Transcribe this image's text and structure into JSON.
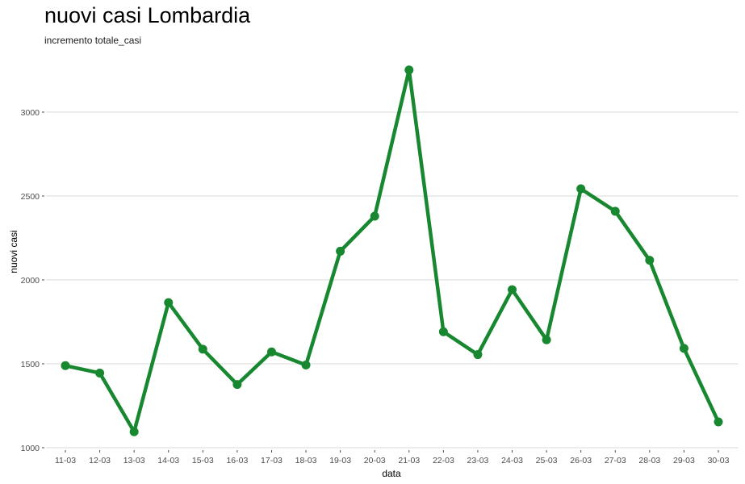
{
  "chart_data": {
    "type": "line",
    "title": "nuovi casi Lombardia",
    "subtitle": "incremento totale_casi",
    "xlabel": "data",
    "ylabel": "nuovi casi",
    "categories": [
      "11-03",
      "12-03",
      "13-03",
      "14-03",
      "15-03",
      "16-03",
      "17-03",
      "18-03",
      "19-03",
      "20-03",
      "21-03",
      "22-03",
      "23-03",
      "24-03",
      "25-03",
      "26-03",
      "27-03",
      "28-03",
      "29-03",
      "30-03"
    ],
    "series": [
      {
        "values": [
          1489,
          1445,
          1095,
          1865,
          1587,
          1377,
          1571,
          1493,
          2171,
          2380,
          3251,
          1691,
          1555,
          1942,
          1643,
          2543,
          2409,
          2117,
          1592,
          1154
        ]
      }
    ],
    "yticks": [
      1000,
      1500,
      2000,
      2500,
      3000
    ],
    "ylim": [
      1000,
      3250
    ],
    "grid": "horizontal-major",
    "legend": "none",
    "line_color": "#17882f"
  }
}
